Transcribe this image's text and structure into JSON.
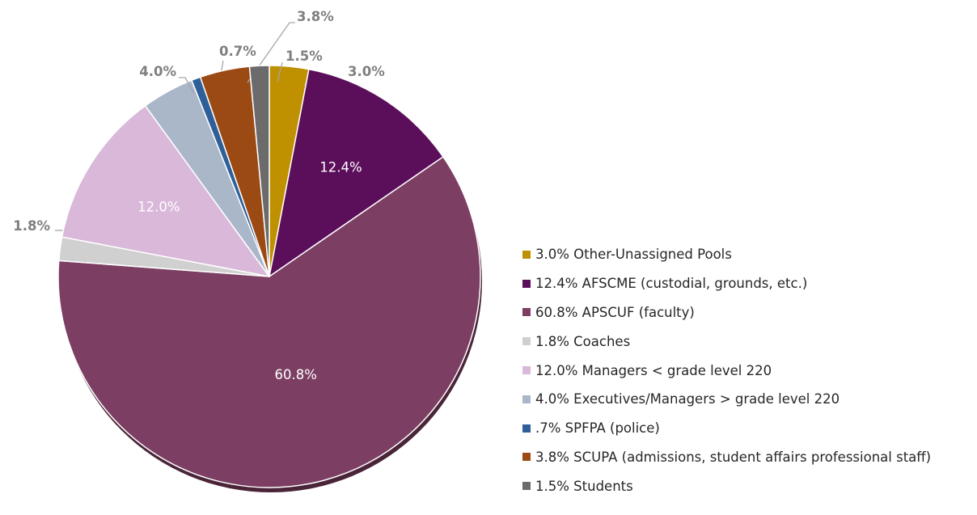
{
  "chart_data": {
    "type": "pie",
    "slices": [
      {
        "value": 3.0,
        "label": "3.0%",
        "legend": "3.0% Other-Unassigned Pools",
        "color": "#bf9000",
        "label_pos": "outside"
      },
      {
        "value": 12.4,
        "label": "12.4%",
        "legend": "12.4% AFSCME (custodial, grounds, etc.)",
        "color": "#5b0f5a",
        "label_pos": "inside"
      },
      {
        "value": 60.8,
        "label": "60.8%",
        "legend": "60.8% APSCUF (faculty)",
        "color": "#7c3f63",
        "label_pos": "inside"
      },
      {
        "value": 1.8,
        "label": "1.8%",
        "legend": "1.8% Coaches",
        "color": "#d0d0d0",
        "label_pos": "outside"
      },
      {
        "value": 12.0,
        "label": "12.0%",
        "legend": "12.0% Managers < grade level 220",
        "color": "#d9b8d9",
        "label_pos": "inside"
      },
      {
        "value": 4.0,
        "label": "4.0%",
        "legend": "4.0% Executives/Managers > grade level 220",
        "color": "#aab7c9",
        "label_pos": "outside"
      },
      {
        "value": 0.7,
        "label": "0.7%",
        "legend": ".7% SPFPA (police)",
        "color": "#2e5f99",
        "label_pos": "outside"
      },
      {
        "value": 3.8,
        "label": "3.8%",
        "legend": "3.8% SCUPA (admissions, student affairs professional staff)",
        "color": "#9c4a14",
        "label_pos": "outside"
      },
      {
        "value": 1.5,
        "label": "1.5%",
        "legend": "1.5% Students",
        "color": "#6b6b6b",
        "label_pos": "outside"
      }
    ],
    "start": "12 o'clock",
    "direction": "clockwise",
    "legend_position": "right",
    "label_color_inside": "#ffffff",
    "label_color_outside": "#7f7f7f",
    "leader_line_color": "#a6a6a6"
  }
}
